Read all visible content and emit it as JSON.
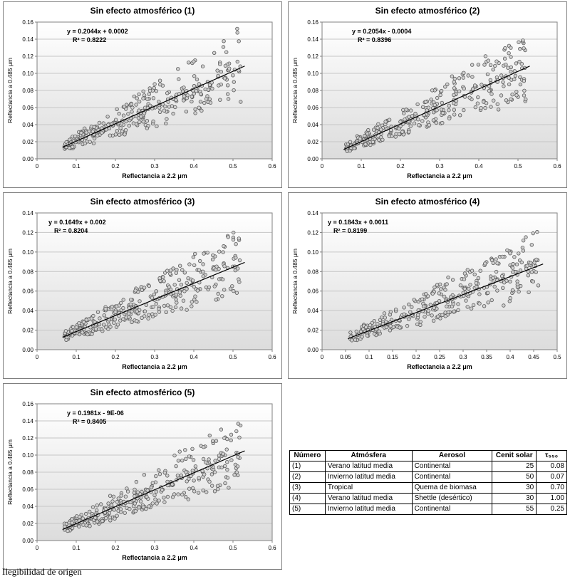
{
  "caption": "Ilegibilidad de origen",
  "chart_data": [
    {
      "type": "scatter",
      "title": "Sin efecto atmosférico (1)",
      "equation": "y = 0.2044x + 0.0002",
      "r2": "R² = 0.8222",
      "xlabel": "Reflectancia a 2.2 μm",
      "ylabel": "Reflectancia a 0.485 μm",
      "x_tick_labels": [
        "0",
        "0.1",
        "0.2",
        "0.3",
        "0.4",
        "0.5",
        "0.6"
      ],
      "y_tick_labels": [
        "0.00",
        "0.02",
        "0.04",
        "0.06",
        "0.08",
        "0.10",
        "0.12",
        "0.14",
        "0.16"
      ],
      "xlim": [
        0,
        0.6
      ],
      "ylim": [
        0,
        0.16
      ],
      "grid": "horizontal",
      "legend": "none",
      "trend": {
        "slope": 0.2044,
        "intercept": 0.0002
      },
      "scatter": {
        "n": 340,
        "x_min": 0.07,
        "x_max": 0.52,
        "seed": 101
      },
      "eq_dx": 42
    },
    {
      "type": "scatter",
      "title": "Sin efecto atmosférico (2)",
      "equation": "y = 0.2054x - 0.0004",
      "r2": "R² = 0.8396",
      "xlabel": "Reflectancia a 2.2 μm",
      "ylabel": "Reflectancia a 0.485 μm",
      "x_tick_labels": [
        "0",
        "0.1",
        "0.2",
        "0.3",
        "0.4",
        "0.5",
        "0.6"
      ],
      "y_tick_labels": [
        "0.00",
        "0.02",
        "0.04",
        "0.06",
        "0.08",
        "0.10",
        "0.12",
        "0.14",
        "0.16"
      ],
      "xlim": [
        0,
        0.6
      ],
      "ylim": [
        0,
        0.16
      ],
      "grid": "horizontal",
      "legend": "none",
      "trend": {
        "slope": 0.2054,
        "intercept": -0.0004
      },
      "scatter": {
        "n": 340,
        "x_min": 0.06,
        "x_max": 0.52,
        "seed": 202
      },
      "eq_dx": 42
    },
    {
      "type": "scatter",
      "title": "Sin efecto atmosférico (3)",
      "equation": "y = 0.1649x + 0.002",
      "r2": "R² = 0.8204",
      "xlabel": "Reflectancia a 2.2 μm",
      "ylabel": "Reflectancia a 0.485 μm",
      "x_tick_labels": [
        "0",
        "0.1",
        "0.2",
        "0.3",
        "0.4",
        "0.5",
        "0.6"
      ],
      "y_tick_labels": [
        "0.00",
        "0.02",
        "0.04",
        "0.06",
        "0.08",
        "0.10",
        "0.12",
        "0.14"
      ],
      "xlim": [
        0,
        0.6
      ],
      "ylim": [
        0,
        0.14
      ],
      "grid": "horizontal",
      "legend": "none",
      "trend": {
        "slope": 0.1649,
        "intercept": 0.002
      },
      "scatter": {
        "n": 340,
        "x_min": 0.07,
        "x_max": 0.52,
        "seed": 303
      },
      "eq_dx": 16
    },
    {
      "type": "scatter",
      "title": "Sin efecto atmosférico (4)",
      "equation": "y = 0.1843x + 0.0011",
      "r2": "R² = 0.8199",
      "xlabel": "Reflectancia a 2.2 μm",
      "ylabel": "Reflectancia a 0.485 μm",
      "x_tick_labels": [
        "0",
        "0.05",
        "0.1",
        "0.15",
        "0.2",
        "0.25",
        "0.3",
        "0.35",
        "0.4",
        "0.45",
        "0.5"
      ],
      "y_tick_labels": [
        "0.00",
        "0.02",
        "0.04",
        "0.06",
        "0.08",
        "0.10",
        "0.12",
        "0.14"
      ],
      "xlim": [
        0,
        0.5
      ],
      "ylim": [
        0,
        0.14
      ],
      "grid": "horizontal",
      "legend": "none",
      "trend": {
        "slope": 0.1843,
        "intercept": 0.0011
      },
      "scatter": {
        "n": 340,
        "x_min": 0.06,
        "x_max": 0.46,
        "seed": 404
      },
      "eq_dx": 8
    },
    {
      "type": "scatter",
      "title": "Sin efecto atmosférico (5)",
      "equation": "y = 0.1981x - 9E-06",
      "r2": "R² = 0.8405",
      "xlabel": "Reflectancia a 2.2 μm",
      "ylabel": "Reflectancia a 0.485 μm",
      "x_tick_labels": [
        "0",
        "0.1",
        "0.2",
        "0.3",
        "0.4",
        "0.5",
        "0.6"
      ],
      "y_tick_labels": [
        "0.00",
        "0.02",
        "0.04",
        "0.06",
        "0.08",
        "0.10",
        "0.12",
        "0.14",
        "0.16"
      ],
      "xlim": [
        0,
        0.6
      ],
      "ylim": [
        0,
        0.16
      ],
      "grid": "horizontal",
      "legend": "none",
      "trend": {
        "slope": 0.1981,
        "intercept": -9e-06
      },
      "scatter": {
        "n": 340,
        "x_min": 0.07,
        "x_max": 0.52,
        "seed": 505
      },
      "eq_dx": 42
    }
  ],
  "table": {
    "headers": [
      "Número",
      "Atmósfera",
      "Aerosol",
      "Cenit solar",
      "τ₅₅₀"
    ],
    "col_widths": [
      "50px",
      "122px",
      "113px",
      "62px",
      "43px"
    ],
    "rows": [
      [
        "(1)",
        "Verano latitud media",
        "Continental",
        "25",
        "0.08"
      ],
      [
        "(2)",
        "Invierno latitud media",
        "Continental",
        "50",
        "0.07"
      ],
      [
        "(3)",
        "Tropical",
        "Quema de biomasa",
        "30",
        "0.70"
      ],
      [
        "(4)",
        "Verano latitud media",
        "Shettle (desértico)",
        "30",
        "1.00"
      ],
      [
        "(5)",
        "Invierno latitud media",
        "Continental",
        "55",
        "0.25"
      ]
    ]
  }
}
